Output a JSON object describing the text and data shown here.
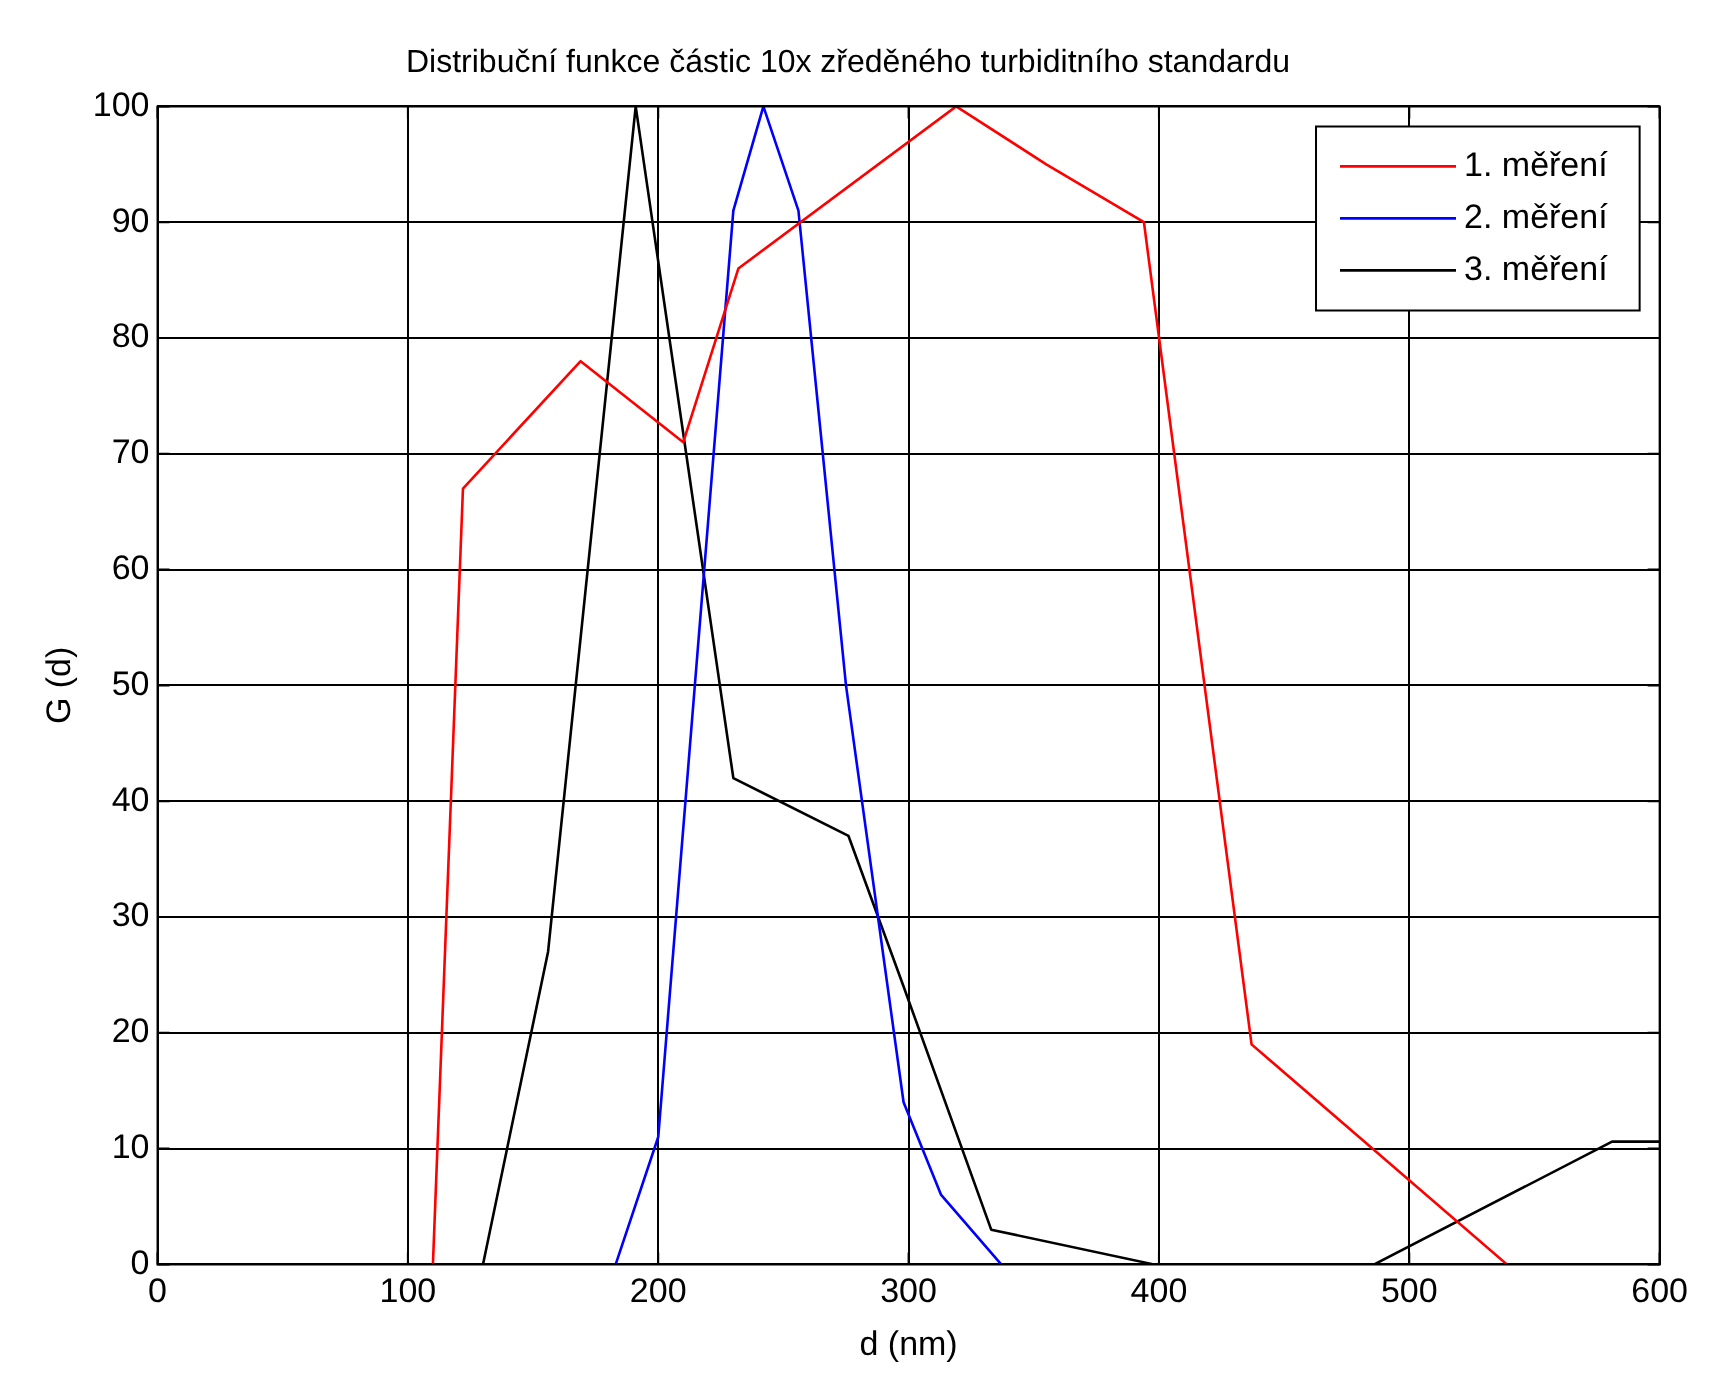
{
  "chart_data": {
    "type": "line",
    "title": "Distribuční funkce částic 10x zředěného turbiditního standardu",
    "xlabel": "d (nm)",
    "ylabel": "G (d)",
    "xlim": [
      0,
      600
    ],
    "xticks": [
      0,
      100,
      200,
      300,
      400,
      500,
      600
    ],
    "ylim": [
      0,
      100
    ],
    "yticks": [
      0,
      10,
      20,
      30,
      40,
      50,
      60,
      70,
      80,
      90,
      100
    ],
    "grid": true,
    "legend": "top right",
    "line_style": "solid",
    "marker": "none",
    "series": [
      {
        "name": "1. měření",
        "color": "#ff0000",
        "x": [
          110,
          122,
          169,
          210,
          232,
          319,
          355,
          394,
          437,
          539
        ],
        "values": [
          0,
          67,
          78,
          71,
          86,
          100,
          95,
          90,
          19,
          0
        ]
      },
      {
        "name": "2. měření",
        "color": "#0000ff",
        "x": [
          183,
          200,
          230,
          242,
          256,
          275,
          298,
          313,
          337
        ],
        "values": [
          0,
          11,
          91,
          100,
          91,
          50,
          14,
          6,
          0
        ]
      },
      {
        "name": "3. měření",
        "color": "#000000",
        "x": [
          130,
          156,
          191,
          230,
          276,
          298,
          333,
          398,
          440,
          486,
          581,
          600
        ],
        "values": [
          0,
          27,
          100,
          42,
          37,
          24,
          3,
          0,
          null,
          0,
          10.6,
          10.6
        ]
      }
    ]
  }
}
